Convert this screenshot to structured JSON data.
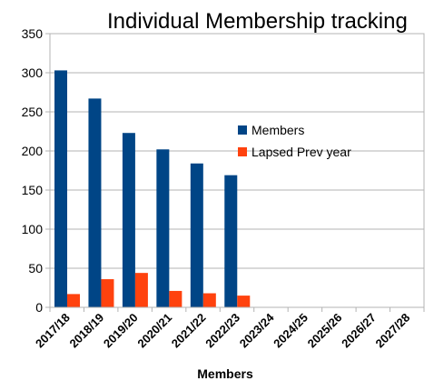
{
  "chart_data": {
    "type": "bar",
    "title": "Individual Membership tracking",
    "xlabel": "Members",
    "ylabel": "",
    "ylim": [
      0,
      350
    ],
    "yticks": [
      0,
      50,
      100,
      150,
      200,
      250,
      300,
      350
    ],
    "grid": true,
    "legend_position": "right",
    "categories": [
      "2017/18",
      "2018/19",
      "2019/20",
      "2020/21",
      "2021/22",
      "2022/23",
      "2023/24",
      "2024/25",
      "2025/26",
      "2026/27",
      "2027/28"
    ],
    "series": [
      {
        "name": "Members",
        "color": "#004586",
        "values": [
          303,
          267,
          223,
          202,
          184,
          169,
          null,
          null,
          null,
          null,
          null
        ]
      },
      {
        "name": "Lapsed Prev year",
        "color": "#ff420e",
        "values": [
          17,
          36,
          44,
          21,
          18,
          15,
          null,
          null,
          null,
          null,
          null
        ]
      }
    ]
  }
}
